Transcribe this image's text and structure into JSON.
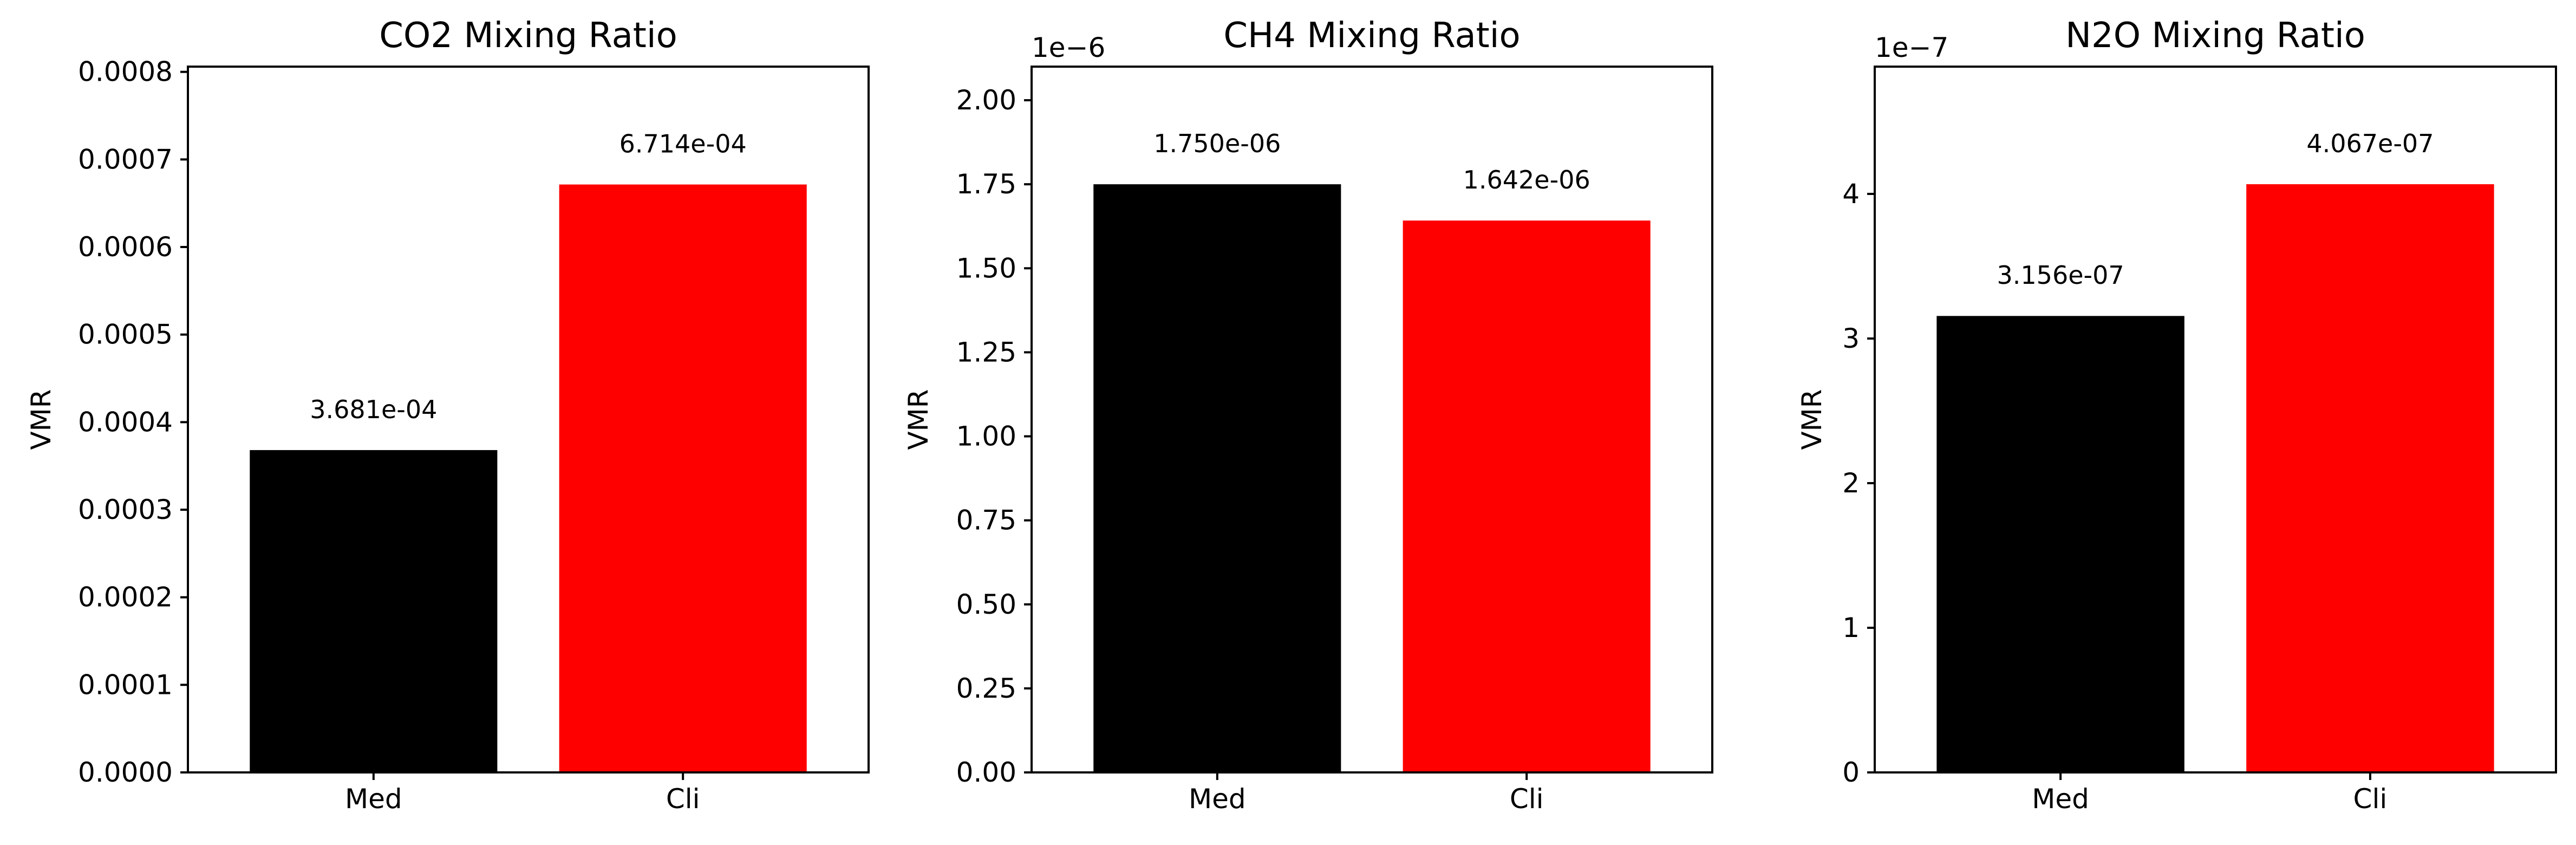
{
  "chart_data": [
    {
      "type": "bar",
      "title": "CO2 Mixing Ratio",
      "xlabel": "",
      "ylabel": "VMR",
      "categories": [
        "Med",
        "Cli"
      ],
      "values": [
        0.0003681,
        0.0006714
      ],
      "value_labels": [
        "3.681e-04",
        "6.714e-04"
      ],
      "colors": [
        "#000000",
        "#ff0000"
      ],
      "ylim": [
        0,
        0.000806
      ],
      "yticks": [
        0,
        0.0001,
        0.0002,
        0.0003,
        0.0004,
        0.0005,
        0.0006,
        0.0007,
        0.0008
      ],
      "ytick_labels": [
        "0.0000",
        "0.0001",
        "0.0002",
        "0.0003",
        "0.0004",
        "0.0005",
        "0.0006",
        "0.0007",
        "0.0008"
      ],
      "offset_text": "",
      "grid": false,
      "legend": "none"
    },
    {
      "type": "bar",
      "title": "CH4 Mixing Ratio",
      "xlabel": "",
      "ylabel": "VMR",
      "categories": [
        "Med",
        "Cli"
      ],
      "values": [
        1.75e-06,
        1.642e-06
      ],
      "value_labels": [
        "1.750e-06",
        "1.642e-06"
      ],
      "colors": [
        "#000000",
        "#ff0000"
      ],
      "ylim": [
        0,
        2.1e-06
      ],
      "yticks": [
        0,
        2.5e-07,
        5e-07,
        7.5e-07,
        1e-06,
        1.25e-06,
        1.5e-06,
        1.75e-06,
        2e-06
      ],
      "ytick_labels": [
        "0.00",
        "0.25",
        "0.50",
        "0.75",
        "1.00",
        "1.25",
        "1.50",
        "1.75",
        "2.00"
      ],
      "offset_text": "1e−6",
      "grid": false,
      "legend": "none"
    },
    {
      "type": "bar",
      "title": "N2O Mixing Ratio",
      "xlabel": "",
      "ylabel": "VMR",
      "categories": [
        "Med",
        "Cli"
      ],
      "values": [
        3.156e-07,
        4.067e-07
      ],
      "value_labels": [
        "3.156e-07",
        "4.067e-07"
      ],
      "colors": [
        "#000000",
        "#ff0000"
      ],
      "ylim": [
        0,
        4.88e-07
      ],
      "yticks": [
        0,
        1e-07,
        2e-07,
        3e-07,
        4e-07
      ],
      "ytick_labels": [
        "0",
        "1",
        "2",
        "3",
        "4"
      ],
      "offset_text": "1e−7",
      "grid": false,
      "legend": "none"
    }
  ]
}
